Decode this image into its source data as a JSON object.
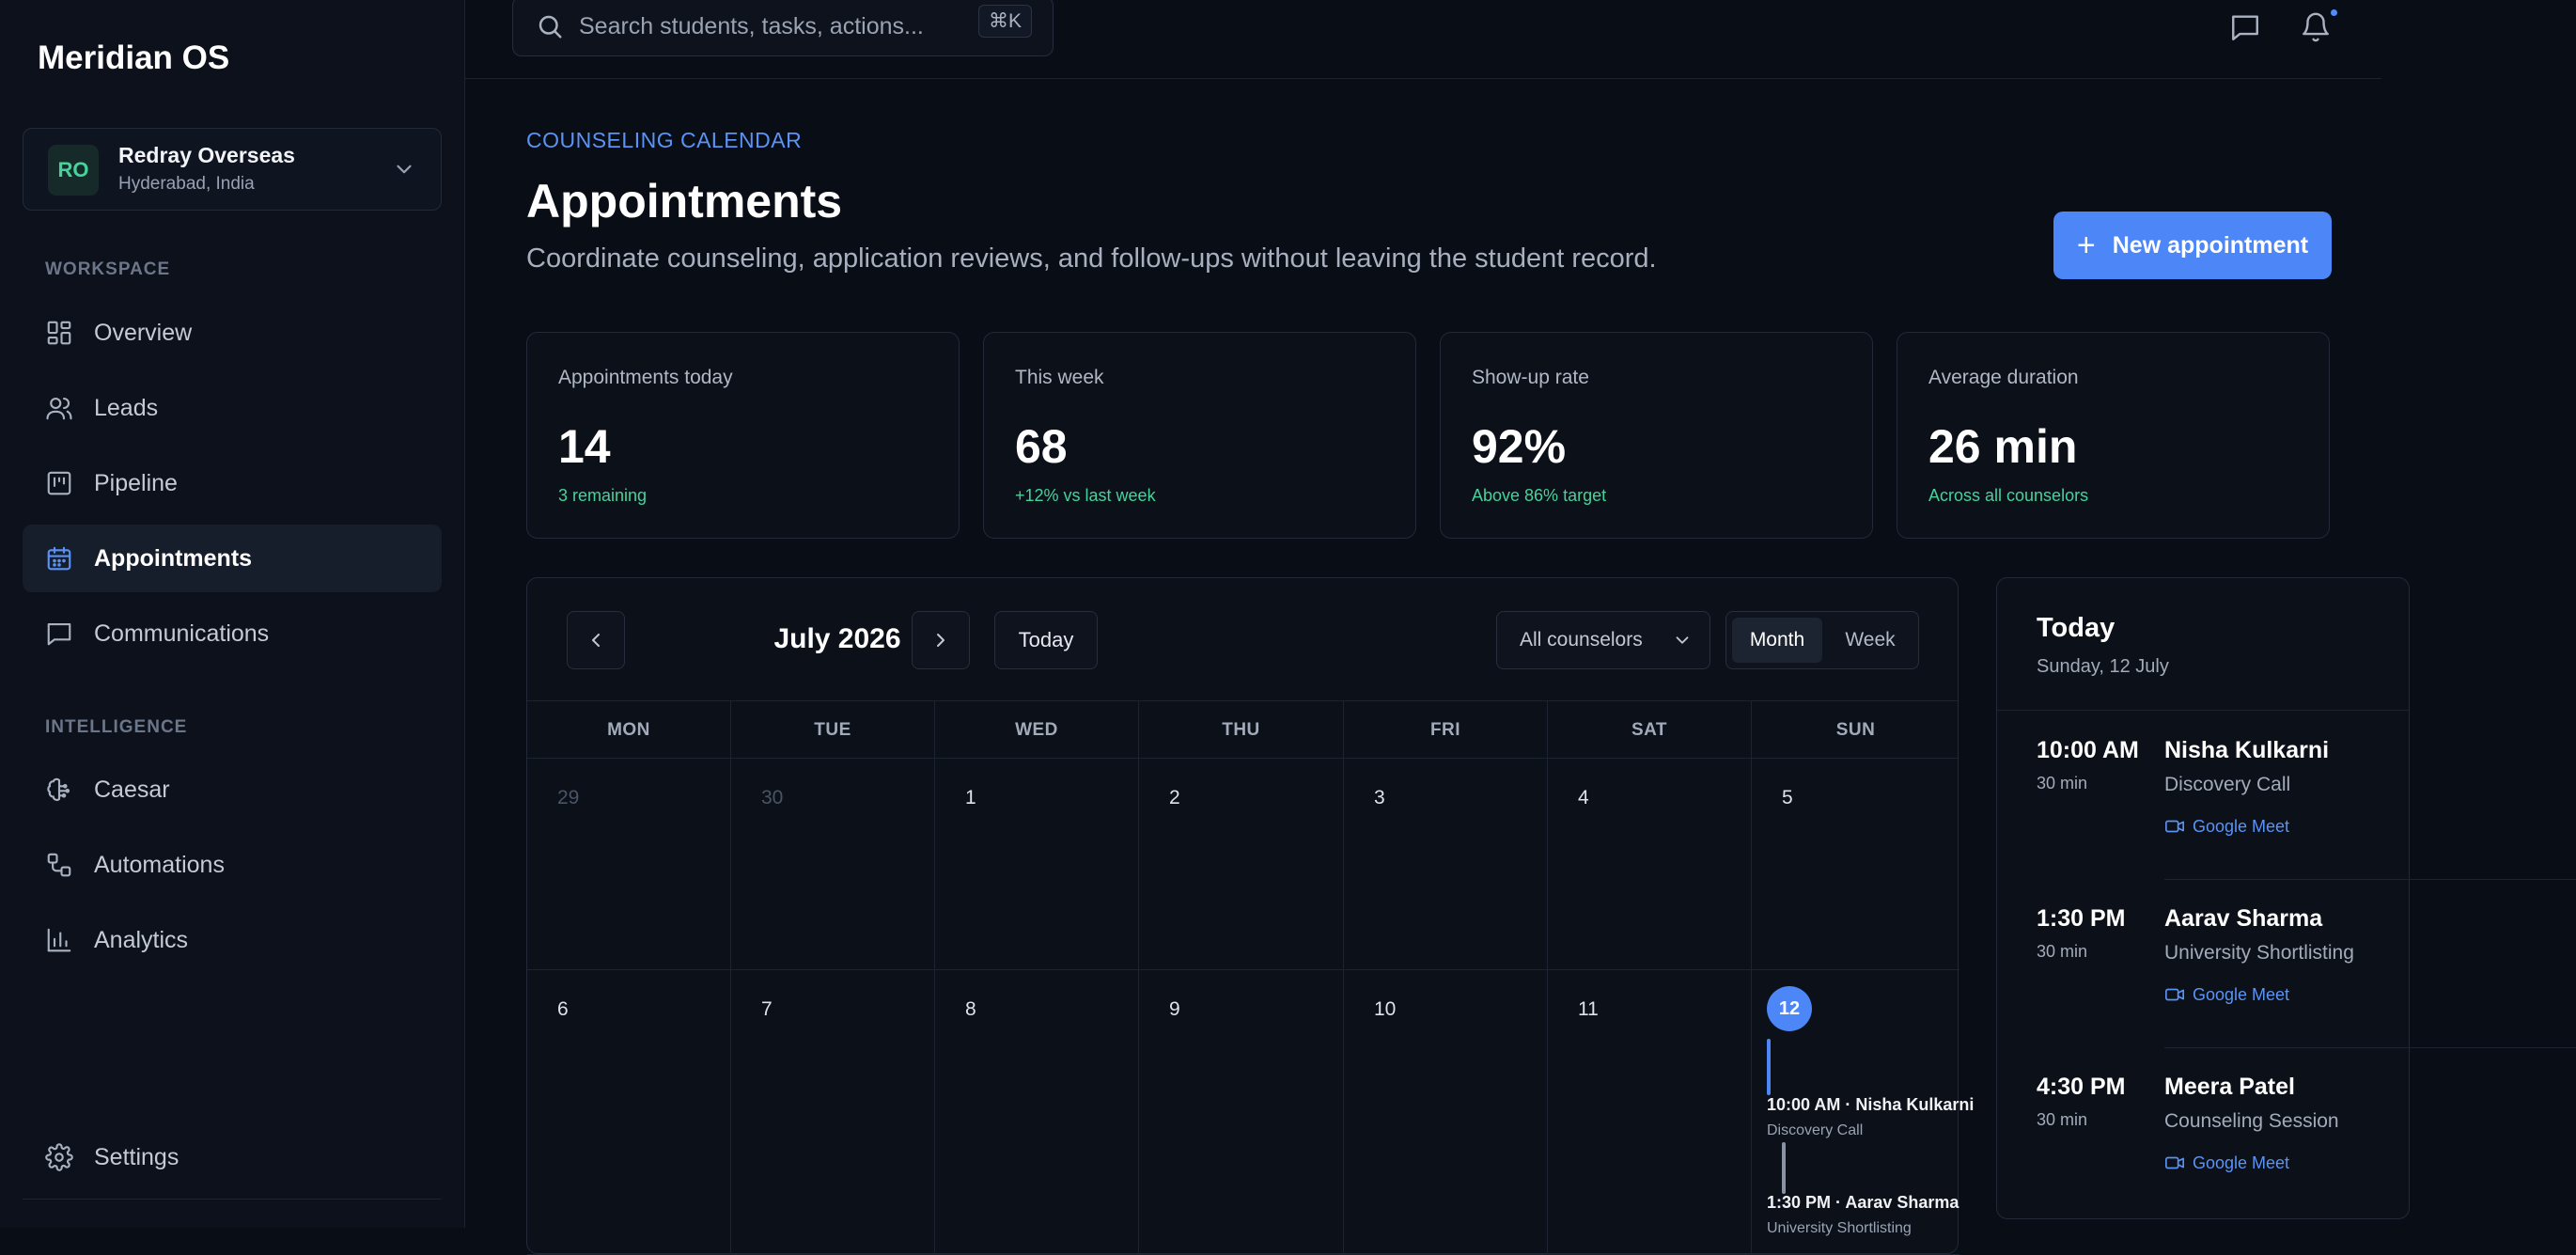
{
  "app": {
    "name": "Meridian OS"
  },
  "org": {
    "initials": "RO",
    "name": "Redray Overseas",
    "location": "Hyderabad, India"
  },
  "sidebar": {
    "workspace_label": "WORKSPACE",
    "workspace_items": [
      {
        "label": "Overview",
        "icon": "grid-icon"
      },
      {
        "label": "Leads",
        "icon": "users-icon"
      },
      {
        "label": "Pipeline",
        "icon": "kanban-icon"
      },
      {
        "label": "Appointments",
        "icon": "calendar-icon",
        "active": true
      },
      {
        "label": "Communications",
        "icon": "message-icon"
      }
    ],
    "intelligence_label": "INTELLIGENCE",
    "intelligence_items": [
      {
        "label": "Caesar",
        "icon": "brain-icon"
      },
      {
        "label": "Automations",
        "icon": "workflow-icon"
      },
      {
        "label": "Analytics",
        "icon": "bar-chart-icon"
      }
    ],
    "settings_label": "Settings"
  },
  "search": {
    "placeholder": "Search students, tasks, actions...",
    "shortcut": "⌘K"
  },
  "header": {
    "eyebrow": "COUNSELING CALENDAR",
    "title": "Appointments",
    "subtitle": "Coordinate counseling, application reviews, and follow-ups without leaving the student record.",
    "new_button": "New appointment"
  },
  "stats": [
    {
      "label": "Appointments today",
      "value": "14",
      "note": "3 remaining"
    },
    {
      "label": "This week",
      "value": "68",
      "note": "+12% vs last week"
    },
    {
      "label": "Show-up rate",
      "value": "92%",
      "note": "Above 86% target"
    },
    {
      "label": "Average duration",
      "value": "26 min",
      "note": "Across all counselors"
    }
  ],
  "calendar": {
    "month_label": "July 2026",
    "today_button": "Today",
    "counselor_filter": "All counselors",
    "views": [
      "Month",
      "Week"
    ],
    "active_view": "Month",
    "weekdays": [
      "MON",
      "TUE",
      "WED",
      "THU",
      "FRI",
      "SAT",
      "SUN"
    ],
    "week1": [
      "29",
      "30",
      "1",
      "2",
      "3",
      "4",
      "5"
    ],
    "week2": [
      "6",
      "7",
      "8",
      "9",
      "10",
      "11",
      "12"
    ],
    "today_day": "12",
    "events": [
      {
        "title": "10:00 AM · Nisha Kulkarni",
        "sub": "Discovery Call",
        "color": "#4c86f7"
      },
      {
        "title": "1:30 PM · Aarav Sharma",
        "sub": "University Shortlisting",
        "color": "#8a93a6"
      }
    ]
  },
  "today_panel": {
    "title": "Today",
    "date": "Sunday, 12 July",
    "appointments": [
      {
        "time": "10:00 AM",
        "duration": "30 min",
        "name": "Nisha Kulkarni",
        "type": "Discovery Call",
        "link": "Google Meet"
      },
      {
        "time": "1:30 PM",
        "duration": "30 min",
        "name": "Aarav Sharma",
        "type": "University Shortlisting",
        "link": "Google Meet"
      },
      {
        "time": "4:30 PM",
        "duration": "30 min",
        "name": "Meera Patel",
        "type": "Counseling Session",
        "link": "Google Meet"
      }
    ]
  },
  "colors": {
    "accent": "#4c86f7",
    "positive": "#45d39c",
    "background": "#090d16"
  }
}
